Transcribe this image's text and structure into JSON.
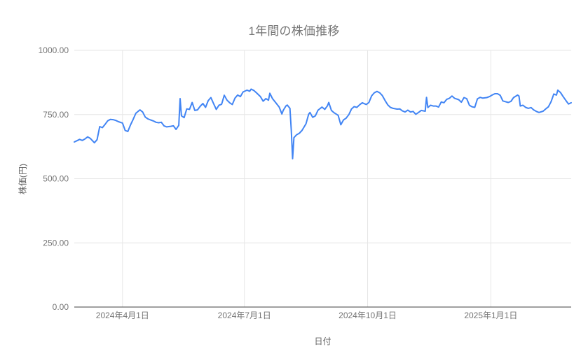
{
  "chart_data": {
    "type": "line",
    "title": "1年間の株価推移",
    "xlabel": "日付",
    "ylabel": "株価(円)",
    "series_name": "株価",
    "ylim": [
      0,
      1000
    ],
    "grid": true,
    "legend": "none",
    "y_ticks": [
      {
        "value": 0,
        "label": "0.00"
      },
      {
        "value": 250,
        "label": "250.00"
      },
      {
        "value": 500,
        "label": "500.00"
      },
      {
        "value": 750,
        "label": "750.00"
      },
      {
        "value": 1000,
        "label": "1000.00"
      }
    ],
    "x_ticks": [
      {
        "date": "2024-04-01",
        "label": "2024年4月1日"
      },
      {
        "date": "2024-07-01",
        "label": "2024年7月1日"
      },
      {
        "date": "2024-10-01",
        "label": "2024年10月1日"
      },
      {
        "date": "2025-01-01",
        "label": "2025年1月1日"
      }
    ],
    "x_range": [
      "2024-02-25",
      "2025-03-02"
    ],
    "colors": {
      "line": "#4285f4",
      "grid": "#e6e6e6",
      "axis_baseline": "#424242",
      "title_text": "#757575",
      "tick_text": "#757575",
      "axis_title_text": "#616161",
      "background": "#ffffff"
    },
    "series": [
      {
        "name": "株価",
        "points": [
          [
            "2024-02-25",
            643
          ],
          [
            "2024-02-27",
            648
          ],
          [
            "2024-02-29",
            653
          ],
          [
            "2024-03-02",
            649
          ],
          [
            "2024-03-04",
            655
          ],
          [
            "2024-03-06",
            663
          ],
          [
            "2024-03-08",
            657
          ],
          [
            "2024-03-11",
            640
          ],
          [
            "2024-03-13",
            652
          ],
          [
            "2024-03-15",
            703
          ],
          [
            "2024-03-17",
            699
          ],
          [
            "2024-03-19",
            712
          ],
          [
            "2024-03-21",
            726
          ],
          [
            "2024-03-23",
            731
          ],
          [
            "2024-03-25",
            730
          ],
          [
            "2024-03-27",
            727
          ],
          [
            "2024-03-29",
            722
          ],
          [
            "2024-04-01",
            717
          ],
          [
            "2024-04-03",
            688
          ],
          [
            "2024-04-05",
            684
          ],
          [
            "2024-04-07",
            710
          ],
          [
            "2024-04-09",
            732
          ],
          [
            "2024-04-11",
            755
          ],
          [
            "2024-04-14",
            768
          ],
          [
            "2024-04-16",
            760
          ],
          [
            "2024-04-18",
            740
          ],
          [
            "2024-04-20",
            733
          ],
          [
            "2024-04-22",
            729
          ],
          [
            "2024-04-24",
            725
          ],
          [
            "2024-04-26",
            720
          ],
          [
            "2024-04-28",
            718
          ],
          [
            "2024-04-30",
            720
          ],
          [
            "2024-05-02",
            706
          ],
          [
            "2024-05-04",
            702
          ],
          [
            "2024-05-07",
            704
          ],
          [
            "2024-05-09",
            706
          ],
          [
            "2024-05-11",
            692
          ],
          [
            "2024-05-13",
            708
          ],
          [
            "2024-05-14",
            812
          ],
          [
            "2024-05-15",
            745
          ],
          [
            "2024-05-17",
            738
          ],
          [
            "2024-05-19",
            772
          ],
          [
            "2024-05-21",
            770
          ],
          [
            "2024-05-23",
            797
          ],
          [
            "2024-05-25",
            766
          ],
          [
            "2024-05-27",
            768
          ],
          [
            "2024-05-29",
            782
          ],
          [
            "2024-05-31",
            793
          ],
          [
            "2024-06-02",
            778
          ],
          [
            "2024-06-04",
            804
          ],
          [
            "2024-06-06",
            816
          ],
          [
            "2024-06-08",
            793
          ],
          [
            "2024-06-10",
            770
          ],
          [
            "2024-06-12",
            786
          ],
          [
            "2024-06-14",
            790
          ],
          [
            "2024-06-16",
            825
          ],
          [
            "2024-06-18",
            806
          ],
          [
            "2024-06-20",
            796
          ],
          [
            "2024-06-22",
            789
          ],
          [
            "2024-06-24",
            814
          ],
          [
            "2024-06-26",
            826
          ],
          [
            "2024-06-28",
            820
          ],
          [
            "2024-06-30",
            838
          ],
          [
            "2024-07-03",
            845
          ],
          [
            "2024-07-05",
            841
          ],
          [
            "2024-07-06",
            849
          ],
          [
            "2024-07-08",
            844
          ],
          [
            "2024-07-10",
            835
          ],
          [
            "2024-07-13",
            820
          ],
          [
            "2024-07-15",
            802
          ],
          [
            "2024-07-17",
            812
          ],
          [
            "2024-07-19",
            806
          ],
          [
            "2024-07-20",
            833
          ],
          [
            "2024-07-22",
            812
          ],
          [
            "2024-07-25",
            792
          ],
          [
            "2024-07-27",
            779
          ],
          [
            "2024-07-29",
            752
          ],
          [
            "2024-07-30",
            766
          ],
          [
            "2024-08-01",
            783
          ],
          [
            "2024-08-02",
            787
          ],
          [
            "2024-08-04",
            774
          ],
          [
            "2024-08-05",
            690
          ],
          [
            "2024-08-06",
            578
          ],
          [
            "2024-08-07",
            660
          ],
          [
            "2024-08-09",
            671
          ],
          [
            "2024-08-11",
            677
          ],
          [
            "2024-08-13",
            688
          ],
          [
            "2024-08-16",
            714
          ],
          [
            "2024-08-18",
            751
          ],
          [
            "2024-08-19",
            758
          ],
          [
            "2024-08-21",
            739
          ],
          [
            "2024-08-23",
            745
          ],
          [
            "2024-08-25",
            767
          ],
          [
            "2024-08-28",
            779
          ],
          [
            "2024-08-30",
            770
          ],
          [
            "2024-09-01",
            784
          ],
          [
            "2024-09-02",
            797
          ],
          [
            "2024-09-04",
            766
          ],
          [
            "2024-09-06",
            757
          ],
          [
            "2024-09-09",
            747
          ],
          [
            "2024-09-11",
            710
          ],
          [
            "2024-09-13",
            729
          ],
          [
            "2024-09-15",
            736
          ],
          [
            "2024-09-17",
            750
          ],
          [
            "2024-09-19",
            772
          ],
          [
            "2024-09-21",
            781
          ],
          [
            "2024-09-23",
            778
          ],
          [
            "2024-09-25",
            788
          ],
          [
            "2024-09-27",
            796
          ],
          [
            "2024-09-30",
            789
          ],
          [
            "2024-10-02",
            797
          ],
          [
            "2024-10-04",
            823
          ],
          [
            "2024-10-06",
            835
          ],
          [
            "2024-10-08",
            840
          ],
          [
            "2024-10-10",
            835
          ],
          [
            "2024-10-12",
            824
          ],
          [
            "2024-10-14",
            805
          ],
          [
            "2024-10-16",
            788
          ],
          [
            "2024-10-18",
            778
          ],
          [
            "2024-10-20",
            774
          ],
          [
            "2024-10-23",
            771
          ],
          [
            "2024-10-25",
            772
          ],
          [
            "2024-10-27",
            764
          ],
          [
            "2024-10-29",
            760
          ],
          [
            "2024-10-31",
            767
          ],
          [
            "2024-11-02",
            760
          ],
          [
            "2024-11-04",
            762
          ],
          [
            "2024-11-06",
            751
          ],
          [
            "2024-11-08",
            758
          ],
          [
            "2024-11-10",
            766
          ],
          [
            "2024-11-13",
            763
          ],
          [
            "2024-11-14",
            817
          ],
          [
            "2024-11-15",
            777
          ],
          [
            "2024-11-17",
            786
          ],
          [
            "2024-11-19",
            783
          ],
          [
            "2024-11-21",
            783
          ],
          [
            "2024-11-23",
            779
          ],
          [
            "2024-11-25",
            799
          ],
          [
            "2024-11-27",
            796
          ],
          [
            "2024-11-29",
            809
          ],
          [
            "2024-12-01",
            813
          ],
          [
            "2024-12-03",
            822
          ],
          [
            "2024-12-05",
            813
          ],
          [
            "2024-12-08",
            808
          ],
          [
            "2024-12-10",
            798
          ],
          [
            "2024-12-12",
            816
          ],
          [
            "2024-12-14",
            812
          ],
          [
            "2024-12-16",
            786
          ],
          [
            "2024-12-18",
            780
          ],
          [
            "2024-12-20",
            778
          ],
          [
            "2024-12-22",
            811
          ],
          [
            "2024-12-24",
            817
          ],
          [
            "2024-12-26",
            814
          ],
          [
            "2024-12-29",
            816
          ],
          [
            "2024-12-31",
            820
          ],
          [
            "2025-01-02",
            826
          ],
          [
            "2025-01-04",
            831
          ],
          [
            "2025-01-06",
            831
          ],
          [
            "2025-01-08",
            825
          ],
          [
            "2025-01-10",
            803
          ],
          [
            "2025-01-12",
            800
          ],
          [
            "2025-01-14",
            797
          ],
          [
            "2025-01-16",
            801
          ],
          [
            "2025-01-18",
            816
          ],
          [
            "2025-01-21",
            826
          ],
          [
            "2025-01-22",
            822
          ],
          [
            "2025-01-23",
            783
          ],
          [
            "2025-01-25",
            786
          ],
          [
            "2025-01-27",
            778
          ],
          [
            "2025-01-29",
            774
          ],
          [
            "2025-01-31",
            777
          ],
          [
            "2025-02-02",
            768
          ],
          [
            "2025-02-04",
            762
          ],
          [
            "2025-02-06",
            758
          ],
          [
            "2025-02-09",
            763
          ],
          [
            "2025-02-11",
            772
          ],
          [
            "2025-02-13",
            780
          ],
          [
            "2025-02-15",
            800
          ],
          [
            "2025-02-17",
            830
          ],
          [
            "2025-02-19",
            826
          ],
          [
            "2025-02-20",
            845
          ],
          [
            "2025-02-22",
            836
          ],
          [
            "2025-02-24",
            820
          ],
          [
            "2025-02-26",
            805
          ],
          [
            "2025-02-28",
            791
          ],
          [
            "2025-03-02",
            796
          ]
        ]
      }
    ]
  }
}
